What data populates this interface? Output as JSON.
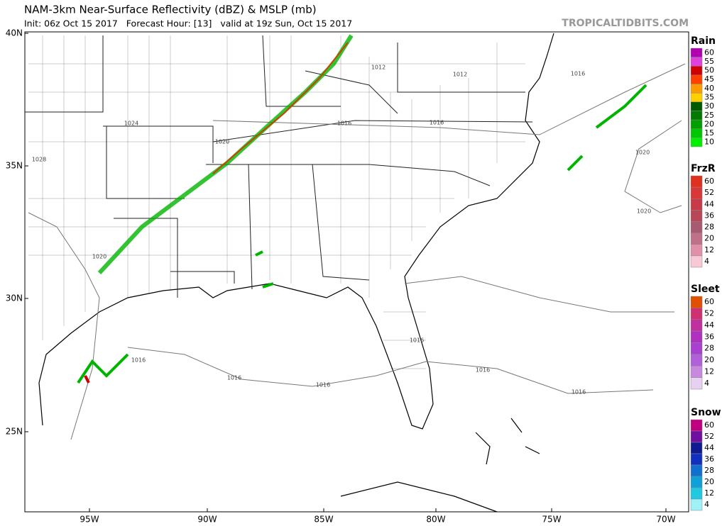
{
  "header": {
    "title": "NAM-3km Near-Surface Reflectivity (dBZ) & MSLP (mb)",
    "subtitle": "Init: 06z Oct 15 2017   Forecast Hour: [13]   valid at 19z Sun, Oct 15 2017",
    "site": "TROPICALTIDBITS.COM"
  },
  "map": {
    "lat_labels": [
      "40N",
      "35N",
      "30N",
      "25N"
    ],
    "lon_labels": [
      "95W",
      "90W",
      "85W",
      "80W",
      "75W",
      "70W"
    ],
    "isobar_labels": [
      "1028",
      "1024",
      "1020",
      "1020",
      "1016",
      "1016",
      "1012",
      "1012",
      "1016",
      "1020",
      "1020",
      "1016",
      "1016",
      "1016",
      "1016",
      "1016",
      "1016"
    ]
  },
  "legends": [
    {
      "title": "Rain",
      "levels": [
        60,
        55,
        50,
        45,
        40,
        35,
        30,
        25,
        20,
        15,
        10
      ],
      "colors": [
        "#b000b0",
        "#e040e0",
        "#d00000",
        "#ff4000",
        "#ff9a00",
        "#ffd000",
        "#005a00",
        "#007a00",
        "#00a000",
        "#00c800",
        "#00f000"
      ]
    },
    {
      "title": "FrzR",
      "levels": [
        60,
        52,
        44,
        36,
        28,
        20,
        12,
        4
      ],
      "colors": [
        "#e03020",
        "#d83838",
        "#c83a48",
        "#b84858",
        "#a85a70",
        "#c07088",
        "#e090a8",
        "#f8c8d4"
      ]
    },
    {
      "title": "Sleet",
      "levels": [
        60,
        52,
        44,
        36,
        28,
        20,
        12,
        4
      ],
      "colors": [
        "#e05000",
        "#d03070",
        "#c030a0",
        "#b030c0",
        "#a840d0",
        "#b060d8",
        "#c888e0",
        "#e8d0f0"
      ]
    },
    {
      "title": "Snow",
      "levels": [
        60,
        52,
        44,
        36,
        28,
        20,
        12,
        4
      ],
      "colors": [
        "#c00080",
        "#7010a0",
        "#101a90",
        "#1030c0",
        "#1070d0",
        "#10a0d8",
        "#20c8e0",
        "#a0f0f8"
      ]
    }
  ]
}
